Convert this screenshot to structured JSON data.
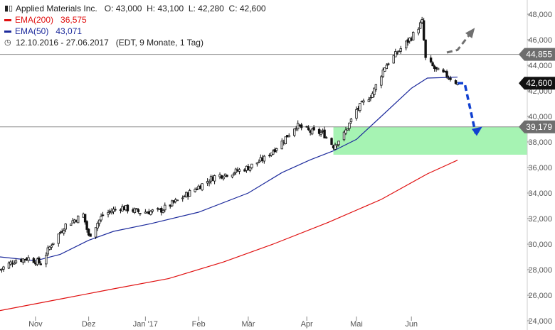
{
  "legend": {
    "title": "Applied Materials Inc.",
    "ohlc": "O: 43,000  H: 43,100  L: 42,280  C: 42,600",
    "ema200_label": "EMA(200)",
    "ema200_value": "36,575",
    "ema50_label": "EMA(50)",
    "ema50_value": "43,071",
    "range": "12.10.2016 - 27.06.2017",
    "range_info": "(EDT, 9 Monate, 1 Tag)"
  },
  "colors": {
    "candle": "#111111",
    "ema200": "#e01010",
    "ema50": "#1c2a9c",
    "support_zone": "#90f0a0",
    "arrow_up": "#707070",
    "arrow_down": "#1040d0",
    "tag_grey": "#6e6e6e",
    "tag_black": "#111111"
  },
  "chart_data": {
    "type": "candlestick",
    "ylim": [
      24000,
      48500
    ],
    "y_ticks": [
      "24,000",
      "26,000",
      "28,000",
      "30,000",
      "32,000",
      "34,000",
      "36,000",
      "38,000",
      "40,000",
      "42,000",
      "44,000",
      "46,000",
      "48,000"
    ],
    "y_tick_values": [
      24000,
      26000,
      28000,
      30000,
      32000,
      34000,
      36000,
      38000,
      40000,
      42000,
      44000,
      46000,
      48000
    ],
    "x_labels": [
      "Nov",
      "Dez",
      "Jan '17",
      "Feb",
      "Mär",
      "Apr",
      "Mai",
      "Jun"
    ],
    "x_label_dates": [
      "2016-11-01",
      "2016-12-01",
      "2017-01-02",
      "2017-02-01",
      "2017-03-01",
      "2017-04-03",
      "2017-05-01",
      "2017-06-01"
    ],
    "date_range": [
      "2016-10-12",
      "2017-06-27"
    ],
    "price_path": [
      {
        "date": "2016-10-12",
        "close": 28000
      },
      {
        "date": "2016-10-20",
        "close": 28700
      },
      {
        "date": "2016-10-28",
        "close": 28900
      },
      {
        "date": "2016-11-04",
        "close": 28500
      },
      {
        "date": "2016-11-10",
        "close": 30000
      },
      {
        "date": "2016-11-18",
        "close": 31500
      },
      {
        "date": "2016-11-28",
        "close": 32300
      },
      {
        "date": "2016-12-01",
        "close": 30600
      },
      {
        "date": "2016-12-09",
        "close": 32300
      },
      {
        "date": "2016-12-19",
        "close": 32900
      },
      {
        "date": "2016-12-30",
        "close": 32500
      },
      {
        "date": "2017-01-10",
        "close": 32600
      },
      {
        "date": "2017-01-20",
        "close": 33400
      },
      {
        "date": "2017-02-01",
        "close": 34500
      },
      {
        "date": "2017-02-10",
        "close": 35300
      },
      {
        "date": "2017-02-20",
        "close": 35600
      },
      {
        "date": "2017-03-01",
        "close": 36000
      },
      {
        "date": "2017-03-10",
        "close": 36700
      },
      {
        "date": "2017-03-20",
        "close": 38000
      },
      {
        "date": "2017-03-28",
        "close": 39300
      },
      {
        "date": "2017-04-05",
        "close": 38800
      },
      {
        "date": "2017-04-12",
        "close": 38700
      },
      {
        "date": "2017-04-18",
        "close": 37700
      },
      {
        "date": "2017-04-24",
        "close": 38600
      },
      {
        "date": "2017-05-01",
        "close": 40500
      },
      {
        "date": "2017-05-10",
        "close": 41800
      },
      {
        "date": "2017-05-17",
        "close": 43900
      },
      {
        "date": "2017-05-24",
        "close": 45000
      },
      {
        "date": "2017-06-01",
        "close": 46200
      },
      {
        "date": "2017-06-07",
        "close": 47400
      },
      {
        "date": "2017-06-09",
        "close": 44500
      },
      {
        "date": "2017-06-15",
        "close": 43600
      },
      {
        "date": "2017-06-21",
        "close": 43200
      },
      {
        "date": "2017-06-27",
        "close": 42600
      }
    ],
    "series": [
      {
        "name": "EMA(200)",
        "points": [
          {
            "date": "2016-10-12",
            "y": 24800
          },
          {
            "date": "2016-11-15",
            "y": 25700
          },
          {
            "date": "2016-12-15",
            "y": 26500
          },
          {
            "date": "2017-01-15",
            "y": 27300
          },
          {
            "date": "2017-02-15",
            "y": 28600
          },
          {
            "date": "2017-03-15",
            "y": 30000
          },
          {
            "date": "2017-04-15",
            "y": 31700
          },
          {
            "date": "2017-05-15",
            "y": 33500
          },
          {
            "date": "2017-06-10",
            "y": 35500
          },
          {
            "date": "2017-06-27",
            "y": 36575
          }
        ]
      },
      {
        "name": "EMA(50)",
        "points": [
          {
            "date": "2016-10-12",
            "y": 29000
          },
          {
            "date": "2016-11-01",
            "y": 28700
          },
          {
            "date": "2016-11-15",
            "y": 29200
          },
          {
            "date": "2016-12-01",
            "y": 30300
          },
          {
            "date": "2016-12-15",
            "y": 31000
          },
          {
            "date": "2017-01-05",
            "y": 31600
          },
          {
            "date": "2017-02-01",
            "y": 32500
          },
          {
            "date": "2017-03-01",
            "y": 34000
          },
          {
            "date": "2017-03-20",
            "y": 35600
          },
          {
            "date": "2017-04-05",
            "y": 36600
          },
          {
            "date": "2017-04-18",
            "y": 37300
          },
          {
            "date": "2017-05-01",
            "y": 38200
          },
          {
            "date": "2017-05-15",
            "y": 40000
          },
          {
            "date": "2017-06-01",
            "y": 42200
          },
          {
            "date": "2017-06-10",
            "y": 43000
          },
          {
            "date": "2017-06-27",
            "y": 43071
          }
        ]
      }
    ],
    "horizontal_lines": [
      {
        "y": 44855,
        "label": "44,855"
      },
      {
        "y": 39179,
        "label": "39,179"
      }
    ],
    "last_price": {
      "y": 42600,
      "label": "42,600"
    },
    "support_zone": {
      "start": "2017-04-18",
      "y_low": 37000,
      "y_high": 39179
    },
    "projection_up": [
      {
        "date": "2017-06-21",
        "y": 45000
      },
      {
        "date": "2017-06-27",
        "y": 45200
      },
      {
        "date": "2017-07-06",
        "y": 46800
      }
    ],
    "projection_down": [
      {
        "date": "2017-06-27",
        "y": 42600
      },
      {
        "date": "2017-07-01",
        "y": 42600
      },
      {
        "date": "2017-07-07",
        "y": 38800
      },
      {
        "date": "2017-07-10",
        "y": 39100
      }
    ]
  }
}
